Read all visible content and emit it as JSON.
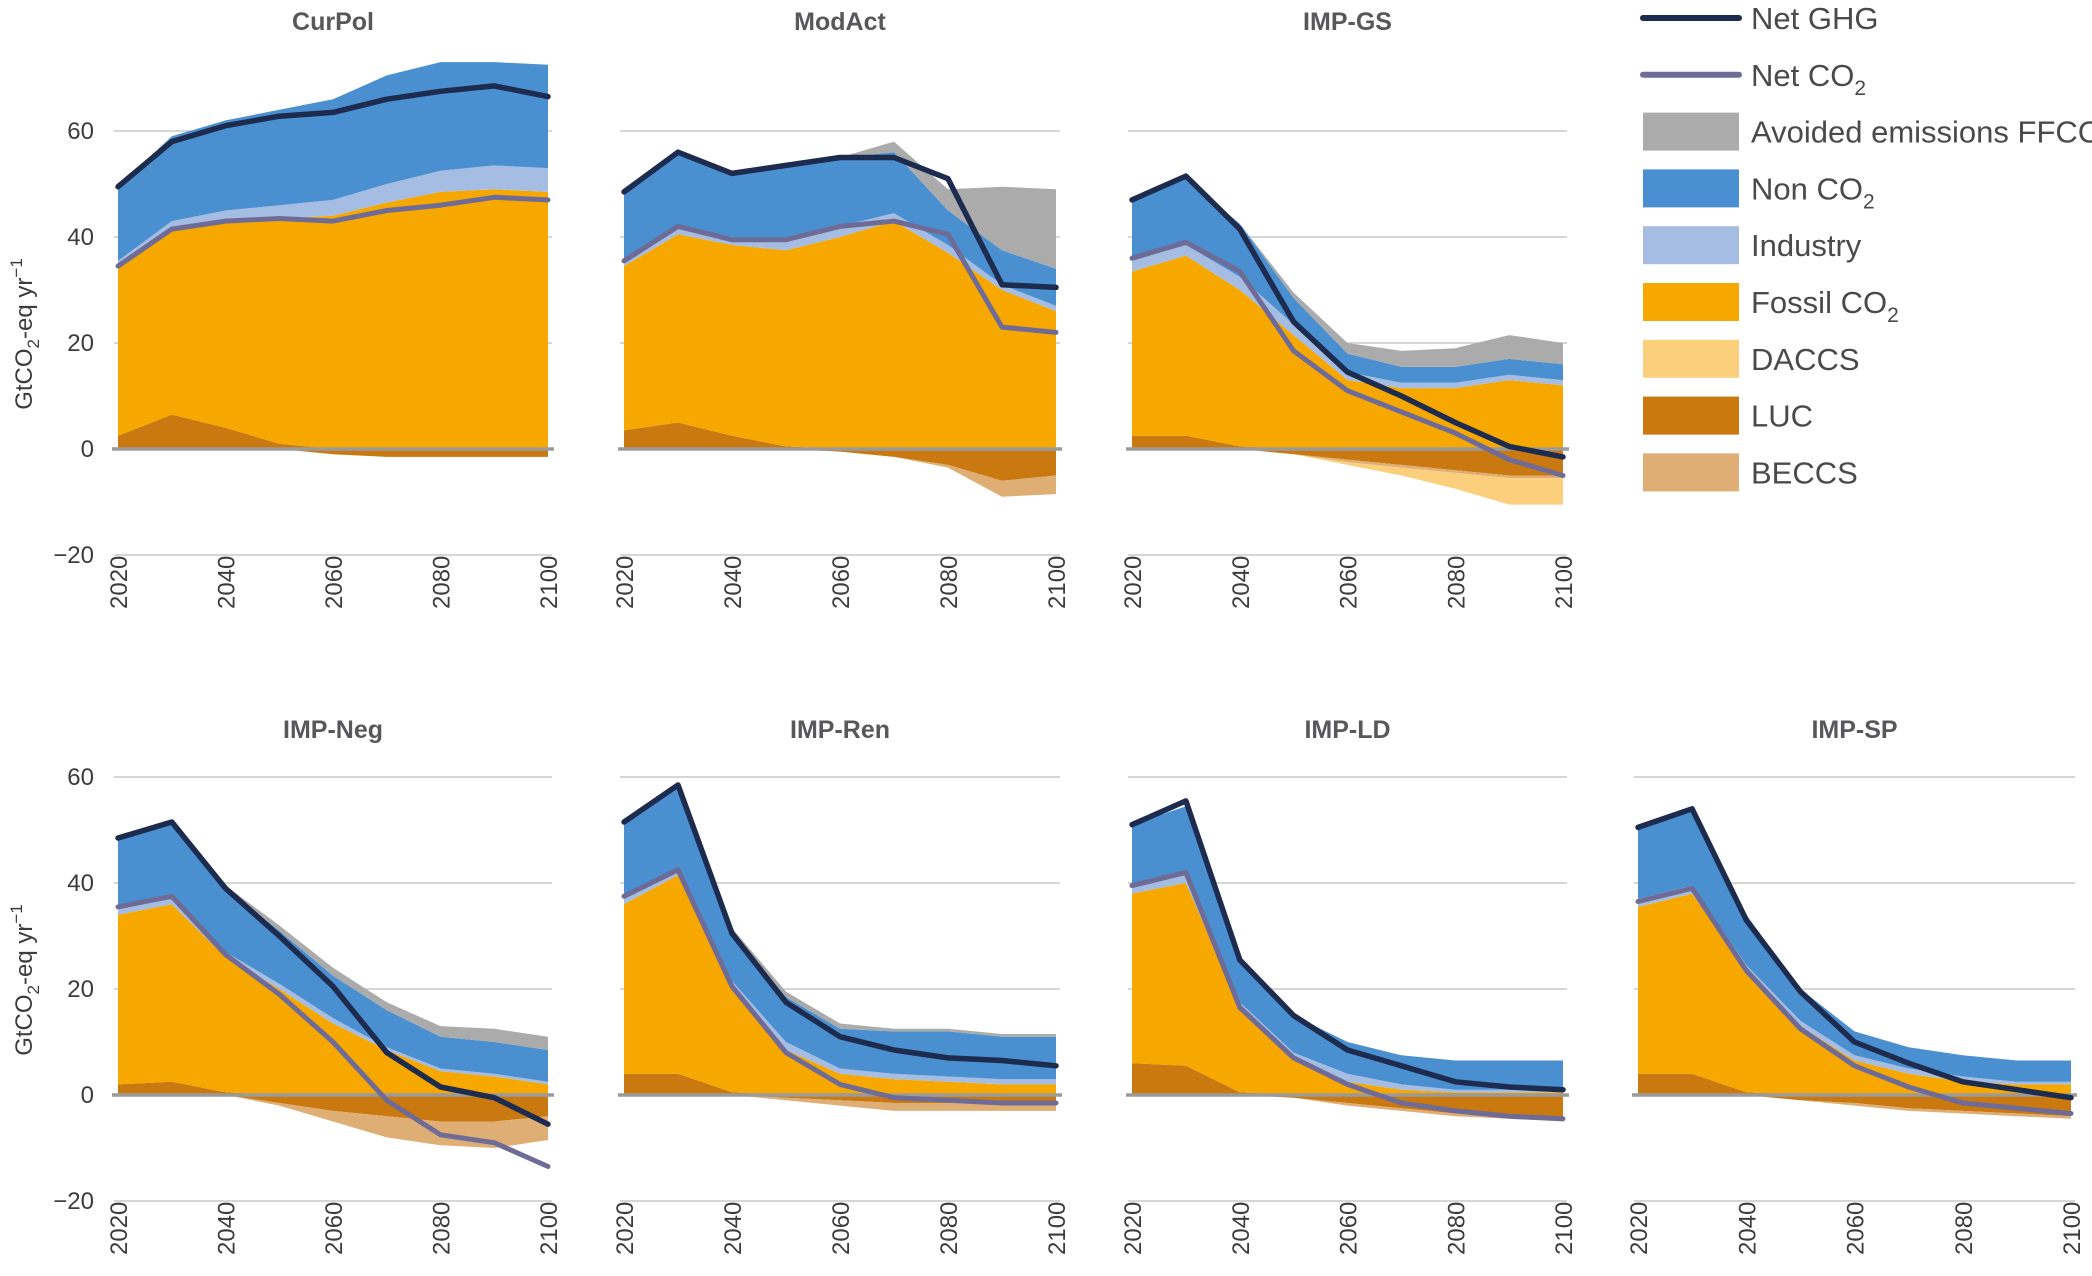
{
  "colors": {
    "net_ghg": "#1c2b4e",
    "net_co2": "#6f6b97",
    "avoided_ffccs": "#ababab",
    "non_co2": "#4a8fd0",
    "industry": "#a5bde3",
    "fossil_co2": "#f6a800",
    "daccs": "#fccf7d",
    "luc": "#c9790f",
    "beccs": "#deae75"
  },
  "legend": [
    {
      "key": "net_ghg",
      "label": "Net GHG",
      "sub": "",
      "kind": "line"
    },
    {
      "key": "net_co2",
      "label": "Net CO",
      "sub": "2",
      "kind": "line"
    },
    {
      "key": "avoided_ffccs",
      "label": "Avoided emissions FFCCS",
      "sub": "",
      "kind": "box"
    },
    {
      "key": "non_co2",
      "label": "Non CO",
      "sub": "2",
      "kind": "box"
    },
    {
      "key": "industry",
      "label": "Industry",
      "sub": "",
      "kind": "box"
    },
    {
      "key": "fossil_co2",
      "label": "Fossil CO",
      "sub": "2",
      "kind": "box"
    },
    {
      "key": "daccs",
      "label": "DACCS",
      "sub": "",
      "kind": "box"
    },
    {
      "key": "luc",
      "label": "LUC",
      "sub": "",
      "kind": "box"
    },
    {
      "key": "beccs",
      "label": "BECCS",
      "sub": "",
      "kind": "box"
    }
  ],
  "chart_data": [
    {
      "type": "area",
      "title": "CurPol",
      "ylabel_main": "GtCO",
      "ylabel_sub": "2",
      "ylabel_rest": "-eq yr",
      "ylabel_sup": "−1",
      "x": [
        2020,
        2030,
        2040,
        2050,
        2060,
        2070,
        2080,
        2090,
        2100
      ],
      "xticks": [
        "2020",
        "2040",
        "2060",
        "2080",
        "2100"
      ],
      "yticks": [
        "−20",
        "0",
        "20",
        "40",
        "60"
      ],
      "ylim": [
        -20,
        73
      ],
      "series": {
        "luc": [
          2.5,
          6.5,
          4,
          1,
          -1,
          -1.5,
          -1.5,
          -1.5,
          -1.5
        ],
        "beccs": [
          0,
          0,
          0,
          0,
          0,
          0,
          0,
          0,
          0
        ],
        "daccs": [
          0,
          0,
          0,
          0,
          0,
          0,
          0,
          0,
          0
        ],
        "fossil_co2": [
          32,
          35,
          39,
          42.5,
          44,
          46.5,
          48.5,
          49,
          48.5
        ],
        "industry": [
          1,
          1.5,
          2,
          2.5,
          3,
          3.5,
          4,
          4.5,
          4.5
        ],
        "non_co2": [
          14,
          16,
          17,
          18,
          19,
          20.5,
          20.5,
          19.5,
          19.5
        ],
        "avoided_ffccs": [
          0,
          0,
          0,
          0,
          0,
          0,
          0,
          0,
          0
        ],
        "net_ghg": [
          49.5,
          58,
          61,
          62.8,
          63.5,
          66,
          67.5,
          68.5,
          66.5
        ],
        "net_co2": [
          34.5,
          41.5,
          43,
          43.5,
          43,
          45,
          46,
          47.5,
          47
        ]
      }
    },
    {
      "type": "area",
      "title": "ModAct",
      "x": [
        2020,
        2030,
        2040,
        2050,
        2060,
        2070,
        2080,
        2090,
        2100
      ],
      "xticks": [
        "2020",
        "2040",
        "2060",
        "2080",
        "2100"
      ],
      "yticks": [],
      "ylim": [
        -20,
        73
      ],
      "series": {
        "luc": [
          3.5,
          5,
          2.5,
          0.5,
          -0.5,
          -1.5,
          -3,
          -6,
          -5
        ],
        "beccs": [
          0,
          0,
          0,
          0,
          0,
          0,
          -0.5,
          -3,
          -3.5
        ],
        "daccs": [
          0,
          0,
          0,
          0,
          0,
          0,
          0,
          0,
          0
        ],
        "fossil_co2": [
          31,
          35.5,
          36,
          37,
          40,
          43,
          37,
          30,
          26
        ],
        "industry": [
          1,
          1.5,
          1.5,
          1.5,
          2,
          1.5,
          1.5,
          1,
          1
        ],
        "non_co2": [
          13,
          14,
          12.5,
          14.5,
          13,
          11.5,
          6.5,
          6.5,
          7
        ],
        "avoided_ffccs": [
          0,
          0,
          0,
          0,
          0,
          2,
          4,
          12,
          15
        ],
        "net_ghg": [
          48.5,
          56,
          52,
          53.5,
          55,
          55,
          51,
          31,
          30.5
        ],
        "net_co2": [
          35.5,
          42,
          39.5,
          39.5,
          42,
          43,
          40.5,
          23,
          22
        ]
      }
    },
    {
      "type": "area",
      "title": "IMP-GS",
      "x": [
        2020,
        2030,
        2040,
        2050,
        2060,
        2070,
        2080,
        2090,
        2100
      ],
      "xticks": [
        "2020",
        "2040",
        "2060",
        "2080",
        "2100"
      ],
      "yticks": [],
      "ylim": [
        -20,
        73
      ],
      "series": {
        "luc": [
          2.5,
          2.5,
          0.5,
          -1,
          -2,
          -3,
          -4,
          -5,
          -5
        ],
        "beccs": [
          0,
          0,
          0,
          0,
          -0.5,
          -0.5,
          -0.5,
          -0.5,
          -0.5
        ],
        "daccs": [
          0,
          0,
          0,
          0,
          -0.5,
          -1.5,
          -3,
          -5,
          -5
        ],
        "fossil_co2": [
          31,
          34,
          29.5,
          21.5,
          13,
          11.5,
          11.5,
          13,
          12
        ],
        "industry": [
          2,
          2,
          2.5,
          2,
          1.5,
          1,
          1,
          1,
          1
        ],
        "non_co2": [
          11,
          12.5,
          10,
          5,
          3.5,
          3,
          3,
          3,
          3
        ],
        "avoided_ffccs": [
          0,
          0,
          0,
          1,
          2,
          3,
          3.5,
          4.5,
          4
        ],
        "net_ghg": [
          47,
          51.5,
          41.5,
          24,
          14.5,
          10,
          5,
          0.5,
          -1.5
        ],
        "net_co2": [
          36,
          39,
          33.5,
          18.5,
          11,
          7,
          3,
          -2,
          -5
        ]
      }
    },
    {
      "type": "area",
      "title": "IMP-Neg",
      "ylabel_main": "GtCO",
      "ylabel_sub": "2",
      "ylabel_rest": "-eq yr",
      "ylabel_sup": "−1",
      "x": [
        2020,
        2030,
        2040,
        2050,
        2060,
        2070,
        2080,
        2090,
        2100
      ],
      "xticks": [
        "2020",
        "2040",
        "2060",
        "2080",
        "2100"
      ],
      "yticks": [
        "−20",
        "0",
        "20",
        "40",
        "60"
      ],
      "ylim": [
        -20,
        73
      ],
      "series": {
        "luc": [
          2,
          2.5,
          0.5,
          -1.5,
          -3,
          -4,
          -5,
          -5,
          -4
        ],
        "beccs": [
          0,
          0,
          0,
          -0.5,
          -2,
          -4,
          -4.5,
          -5,
          -4.5
        ],
        "daccs": [
          0,
          0,
          0,
          0,
          0,
          0,
          0,
          0,
          0
        ],
        "fossil_co2": [
          32,
          33.5,
          25.5,
          20,
          13.5,
          8.5,
          4.5,
          3.5,
          2
        ],
        "industry": [
          1.5,
          1.5,
          1,
          1,
          1,
          0.5,
          0.5,
          0.5,
          0.5
        ],
        "non_co2": [
          13,
          14,
          12,
          10,
          8,
          7,
          6,
          6,
          6
        ],
        "avoided_ffccs": [
          0,
          0,
          0.5,
          1,
          1.5,
          1.5,
          2,
          2.5,
          2.5
        ],
        "net_ghg": [
          48.5,
          51.5,
          39,
          30,
          20.5,
          8,
          1.5,
          -0.5,
          -5.5
        ],
        "net_co2": [
          35.5,
          37.5,
          26.5,
          19,
          10,
          -1,
          -7.5,
          -9,
          -13.5
        ]
      }
    },
    {
      "type": "area",
      "title": "IMP-Ren",
      "x": [
        2020,
        2030,
        2040,
        2050,
        2060,
        2070,
        2080,
        2090,
        2100
      ],
      "xticks": [
        "2020",
        "2040",
        "2060",
        "2080",
        "2100"
      ],
      "yticks": [],
      "ylim": [
        -20,
        73
      ],
      "series": {
        "luc": [
          4,
          4,
          0.5,
          -0.5,
          -1,
          -1.5,
          -1.5,
          -1.5,
          -1.5
        ],
        "beccs": [
          0,
          0,
          0,
          -0.5,
          -1,
          -1.5,
          -1.5,
          -1.5,
          -1.5
        ],
        "daccs": [
          0,
          0,
          0,
          0,
          0,
          0,
          0,
          0,
          0
        ],
        "fossil_co2": [
          32,
          37.5,
          19.5,
          8.5,
          4,
          3,
          2.5,
          2,
          2
        ],
        "industry": [
          1.5,
          1.5,
          1.5,
          1.5,
          1,
          1,
          1,
          1,
          1
        ],
        "non_co2": [
          13.5,
          15.5,
          9.5,
          8.5,
          7.5,
          8,
          8.5,
          8,
          8
        ],
        "avoided_ffccs": [
          0,
          0,
          0.5,
          1,
          1,
          0.5,
          0.5,
          0.5,
          0.5
        ],
        "net_ghg": [
          51.5,
          58.5,
          30.5,
          17.5,
          11,
          8.5,
          7,
          6.5,
          5.5
        ],
        "net_co2": [
          37.5,
          42.5,
          20.5,
          8,
          2,
          -0.5,
          -1,
          -1.5,
          -1.5
        ]
      }
    },
    {
      "type": "area",
      "title": "IMP-LD",
      "x": [
        2020,
        2030,
        2040,
        2050,
        2060,
        2070,
        2080,
        2090,
        2100
      ],
      "xticks": [
        "2020",
        "2040",
        "2060",
        "2080",
        "2100"
      ],
      "yticks": [],
      "ylim": [
        -20,
        73
      ],
      "series": {
        "luc": [
          6,
          5.5,
          0.5,
          -0.5,
          -1.5,
          -2.5,
          -3.5,
          -4,
          -4.5
        ],
        "beccs": [
          0,
          0,
          0,
          0,
          -0.5,
          -0.5,
          -0.5,
          -0.5,
          -0.5
        ],
        "daccs": [
          0,
          0,
          0,
          0,
          0,
          0,
          0,
          0,
          0
        ],
        "fossil_co2": [
          32,
          34.5,
          16,
          7,
          2.5,
          1,
          0.5,
          0.5,
          0.5
        ],
        "industry": [
          1.5,
          1.5,
          1,
          1,
          1.5,
          1,
          0.5,
          0.5,
          0.5
        ],
        "non_co2": [
          11.5,
          13,
          8,
          7,
          6,
          5.5,
          5.5,
          5.5,
          5.5
        ],
        "avoided_ffccs": [
          0,
          0,
          0,
          0,
          0,
          0,
          0,
          0,
          0
        ],
        "net_ghg": [
          51,
          55.5,
          25.5,
          15,
          8.5,
          5.5,
          2.5,
          1.5,
          1
        ],
        "net_co2": [
          39.5,
          42,
          16.5,
          7,
          2,
          -1.5,
          -3,
          -4,
          -4.5
        ]
      }
    },
    {
      "type": "area",
      "title": "IMP-SP",
      "x": [
        2020,
        2030,
        2040,
        2050,
        2060,
        2070,
        2080,
        2090,
        2100
      ],
      "xticks": [
        "2020",
        "2040",
        "2060",
        "2080",
        "2100"
      ],
      "yticks": [],
      "ylim": [
        -20,
        73
      ],
      "series": {
        "luc": [
          4,
          4,
          0.5,
          -1,
          -1.5,
          -2.5,
          -3,
          -3.5,
          -4
        ],
        "beccs": [
          0,
          0,
          0,
          0,
          -0.5,
          -0.5,
          -0.5,
          -0.5,
          -0.5
        ],
        "daccs": [
          0,
          0,
          0,
          0,
          0,
          0,
          0,
          0,
          0
        ],
        "fossil_co2": [
          31.5,
          34,
          23,
          13,
          6.5,
          4,
          2.5,
          2,
          2
        ],
        "industry": [
          1.5,
          1.5,
          1,
          1,
          1,
          1,
          1,
          0.5,
          0.5
        ],
        "non_co2": [
          13.5,
          14.5,
          9.5,
          6,
          4.5,
          4,
          4,
          4,
          4
        ],
        "avoided_ffccs": [
          0,
          0,
          0,
          0,
          0,
          0,
          0,
          0,
          0
        ],
        "net_ghg": [
          50.5,
          54,
          33,
          19.5,
          10,
          6,
          2.5,
          1,
          -0.5
        ],
        "net_co2": [
          36.5,
          39,
          23.5,
          12.5,
          5.5,
          1.5,
          -1.5,
          -2.5,
          -3.5
        ]
      }
    }
  ]
}
